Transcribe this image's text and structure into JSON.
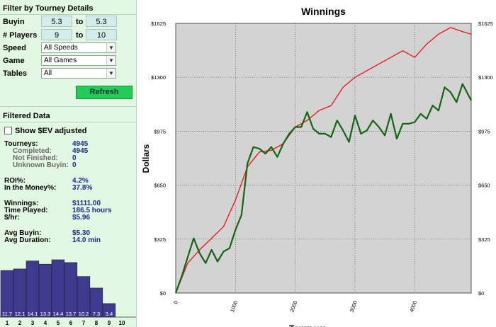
{
  "filter": {
    "title": "Filter by Tourney Details",
    "buyin": {
      "label": "Buyin",
      "min": "5.3",
      "to": "to",
      "max": "5.3"
    },
    "players": {
      "label": "# Players",
      "min": "9",
      "to": "to",
      "max": "10"
    },
    "speed": {
      "label": "Speed",
      "value": "All Speeds"
    },
    "game": {
      "label": "Game",
      "value": "All Games"
    },
    "tables": {
      "label": "Tables",
      "value": "All"
    },
    "refresh_label": "Refresh"
  },
  "filtered": {
    "title": "Filtered Data",
    "ev_label": "Show $EV adjusted",
    "stats": [
      {
        "label": "Tourneys:",
        "value": "4945",
        "indent": false
      },
      {
        "label": "Completed:",
        "value": "4945",
        "indent": true
      },
      {
        "label": "Not Finished:",
        "value": "0",
        "indent": true
      },
      {
        "label": "Unknown Buyin:",
        "value": "0",
        "indent": true
      },
      {
        "label": "ROI%:",
        "value": "4.2%",
        "indent": false
      },
      {
        "label": "In the Money%:",
        "value": "37.8%",
        "indent": false
      },
      {
        "label": "Winnings:",
        "value": "$1111.00",
        "indent": false
      },
      {
        "label": "Time Played:",
        "value": "186.5 hours",
        "indent": false
      },
      {
        "label": "$/hr:",
        "value": "$5.96",
        "indent": false
      },
      {
        "label": "Avg Buyin:",
        "value": "$5.30",
        "indent": false
      },
      {
        "label": "Avg Duration:",
        "value": "14.0 min",
        "indent": false
      }
    ]
  },
  "histogram": {
    "labels": [
      "1",
      "2",
      "3",
      "4",
      "5",
      "6",
      "7",
      "8",
      "9",
      "10"
    ],
    "values": [
      11.7,
      12.1,
      14.1,
      13.3,
      14.4,
      13.7,
      10.2,
      7.3,
      3.4,
      null
    ],
    "value_labels": [
      "11.7",
      "12.1",
      "14.1",
      "13.3",
      "14.4",
      "13.7",
      "10.2",
      "7.3",
      "3.4",
      ""
    ],
    "bar_color": "#3e3a8e"
  },
  "chart_data": {
    "type": "line",
    "title": "Winnings",
    "xlabel": "Tourneys",
    "ylabel": "Dollars",
    "xlim": [
      0,
      4945
    ],
    "ylim": [
      0,
      1625
    ],
    "x_ticks": [
      "0",
      "1000",
      "2000",
      "3000",
      "4000"
    ],
    "y_ticks": [
      "$0",
      "$325",
      "$650",
      "$975",
      "$1300",
      "$1625"
    ],
    "grid": true,
    "series": [
      {
        "color": "#ee1111",
        "x": [
          0,
          200,
          400,
          600,
          800,
          1000,
          1200,
          1400,
          1600,
          1800,
          2000,
          2200,
          2400,
          2600,
          2800,
          3000,
          3200,
          3400,
          3600,
          3800,
          4000,
          4200,
          4400,
          4600,
          4800,
          4945
        ],
        "y": [
          0,
          180,
          260,
          330,
          400,
          560,
          760,
          850,
          860,
          900,
          1000,
          1040,
          1100,
          1130,
          1240,
          1300,
          1340,
          1380,
          1420,
          1460,
          1420,
          1500,
          1560,
          1600,
          1575,
          1560
        ]
      },
      {
        "color": "#116611",
        "x": [
          0,
          100,
          300,
          400,
          500,
          600,
          700,
          800,
          900,
          1000,
          1100,
          1200,
          1300,
          1400,
          1500,
          1600,
          1700,
          1800,
          1900,
          2000,
          2100,
          2200,
          2300,
          2400,
          2500,
          2600,
          2700,
          2800,
          2900,
          3000,
          3100,
          3200,
          3300,
          3400,
          3500,
          3600,
          3700,
          3800,
          3900,
          4000,
          4100,
          4200,
          4300,
          4400,
          4500,
          4600,
          4700,
          4800,
          4945
        ],
        "y": [
          0,
          100,
          330,
          240,
          180,
          260,
          190,
          250,
          270,
          380,
          470,
          780,
          880,
          870,
          840,
          880,
          820,
          900,
          960,
          1000,
          1000,
          1090,
          990,
          960,
          960,
          940,
          1040,
          980,
          910,
          1070,
          960,
          980,
          1040,
          1000,
          950,
          1080,
          930,
          1020,
          1020,
          1030,
          1080,
          1050,
          1130,
          1100,
          1240,
          1210,
          1150,
          1260,
          1160
        ]
      }
    ]
  }
}
